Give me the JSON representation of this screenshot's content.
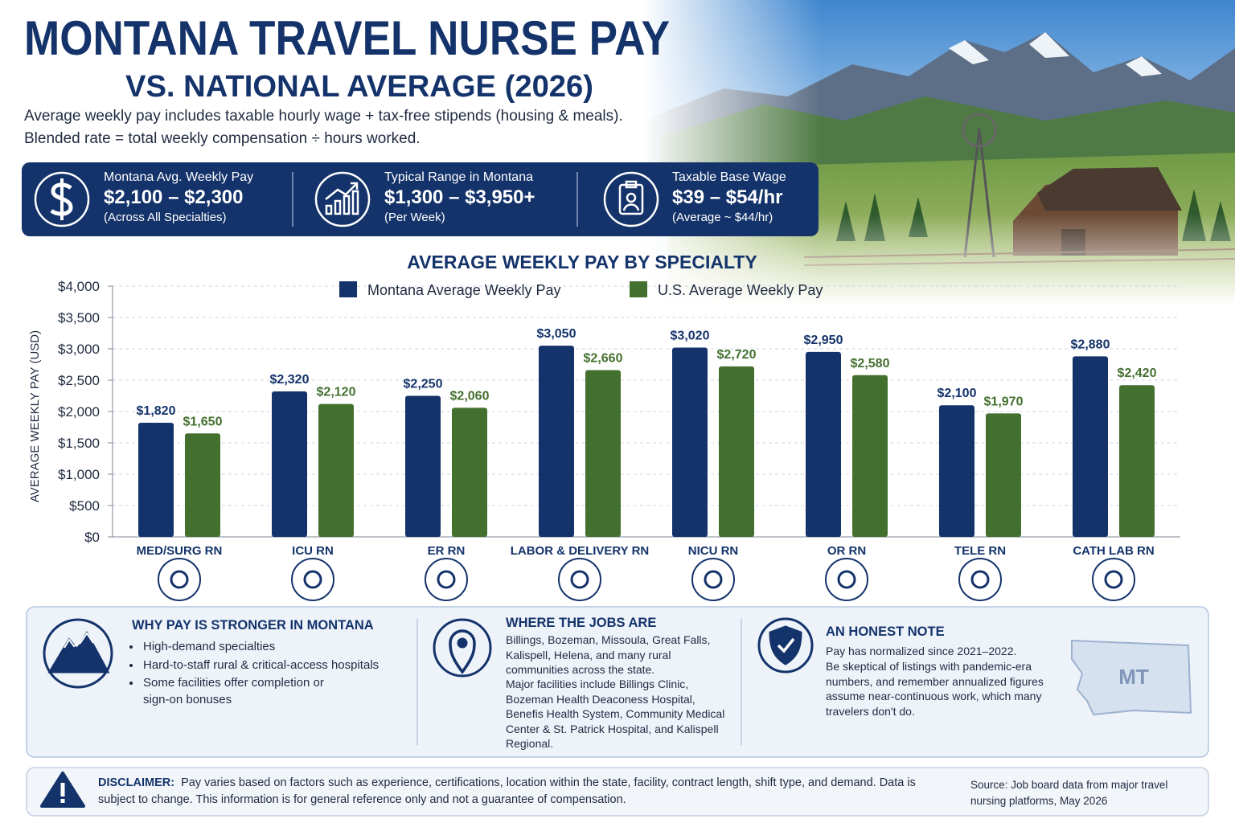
{
  "header": {
    "title": "MONTANA TRAVEL NURSE PAY",
    "subtitle": "VS. NATIONAL AVERAGE (2026)",
    "notes": [
      "Average weekly pay includes taxable hourly wage + tax-free stipends (housing & meals).",
      "Blended rate = total weekly compensation ÷ hours worked."
    ]
  },
  "stats": [
    {
      "label": "Montana Avg. Weekly Pay",
      "value": "$2,100 – $2,300",
      "note": "(Across All Specialties)"
    },
    {
      "label": "Typical Range in Montana",
      "value": "$1,300 – $3,950+",
      "note": "(Per Week)"
    },
    {
      "label": "Taxable Base Wage",
      "value": "$39 – $54/hr",
      "note": "(Average ~ $44/hr)"
    }
  ],
  "chart_data": {
    "type": "bar",
    "title": "AVERAGE WEEKLY PAY BY SPECIALTY",
    "y_label": "AVERAGE WEEKLY PAY (USD)",
    "categories": [
      "MED/SURG RN",
      "ICU RN",
      "ER RN",
      "LABOR & DELIVERY RN",
      "NICU RN",
      "OR RN",
      "TELE RN",
      "CATH LAB RN"
    ],
    "series": [
      {
        "name": "Montana Average Weekly Pay",
        "color": "#14336b",
        "values": [
          1820,
          2320,
          2250,
          3050,
          3020,
          2950,
          2100,
          2880
        ],
        "value_labels": [
          "$1,820",
          "$2,320",
          "$2,250",
          "$3,050",
          "$3,020",
          "$2,950",
          "$2,100",
          "$2,880"
        ]
      },
      {
        "name": "U.S. Average Weekly Pay",
        "color": "#44702f",
        "values": [
          1650,
          2120,
          2060,
          2660,
          2720,
          2580,
          1970,
          2420
        ],
        "value_labels": [
          "$1,650",
          "$2,120",
          "$2,060",
          "$2,660",
          "$2,720",
          "$2,580",
          "$1,970",
          "$2,420"
        ]
      }
    ],
    "ylim": [
      0,
      4000
    ],
    "yticks": [
      {
        "value": 0,
        "label": "$0"
      },
      {
        "value": 500,
        "label": "$500"
      },
      {
        "value": 1000,
        "label": "$1,000"
      },
      {
        "value": 1500,
        "label": "$1,500"
      },
      {
        "value": 2000,
        "label": "$2,000"
      },
      {
        "value": 2500,
        "label": "$2,500"
      },
      {
        "value": 3000,
        "label": "$3,000"
      },
      {
        "value": 3500,
        "label": "$3,500"
      },
      {
        "value": 4000,
        "label": "$4,000"
      }
    ],
    "grid": true,
    "legend": "top"
  },
  "panels": [
    {
      "title": "WHY PAY IS STRONGER IN MONTANA",
      "items": [
        "High-demand specialties",
        "Hard-to-staff rural & critical-access hospitals",
        "Some facilities offer completion or sign-on bonuses"
      ]
    },
    {
      "title": "WHERE THE JOBS ARE",
      "paragraphs": [
        "Billings, Bozeman, Missoula, Great Falls, Kalispell, Helena, and many rural communities across the state.",
        "Major facilities include Billings Clinic, Bozeman Health Deaconess Hospital, Benefis Health System, Community Medical Center & St. Patrick Hospital, and Kalispell Regional."
      ]
    },
    {
      "title": "AN HONEST NOTE",
      "paragraphs": [
        "Pay has normalized since 2021–2022.",
        "Be skeptical of listings with pandemic-era numbers, and remember annualized figures assume near-continuous work, which many travelers don't do."
      ],
      "map_label": "MT"
    }
  ],
  "disclaimer": {
    "label": "DISCLAIMER:",
    "text": "Pay varies based on factors such as experience, certifications, location within the state, facility, contract length, shift type, and demand. Data is subject to change. This information is for general reference only and not a guarantee of compensation.",
    "source": "Source: Job board data from major travel nursing platforms, May 2026"
  }
}
